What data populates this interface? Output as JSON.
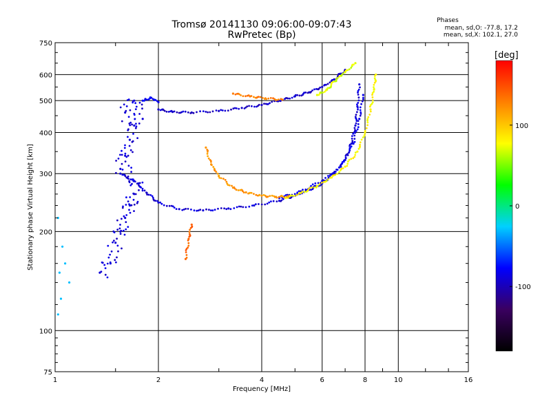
{
  "chart_data": {
    "type": "scatter",
    "title": "Tromsø 20141130 09:06:00-09:07:43",
    "subtitle": "RwPretec (Bp)",
    "xlabel": "Frequency [MHz]",
    "ylabel": "Stationary phase Virtual Height [km]",
    "x_scale": "log",
    "y_scale": "log",
    "xlim": [
      1,
      16
    ],
    "ylim": [
      75,
      750
    ],
    "x_ticks": [
      1,
      2,
      4,
      6,
      8,
      10,
      16
    ],
    "y_ticks": [
      75,
      100,
      200,
      300,
      400,
      500,
      600,
      750
    ],
    "grid": true,
    "phase_stats": {
      "heading": "Phases",
      "o_line": "mean, sd,O: -77.8, 17.2",
      "x_line": "mean, sd,X: 102.1, 27.0"
    },
    "colorbar": {
      "label": "[deg]",
      "range": [
        -180,
        180
      ],
      "ticks": [
        100,
        0,
        -100
      ],
      "colors": [
        "#000000",
        "#3a0060",
        "#0000ff",
        "#00d0ff",
        "#00ff00",
        "#ffff00",
        "#ff8000",
        "#ff0000"
      ]
    },
    "series": [
      {
        "kind": "trace",
        "phase": -95,
        "points": [
          [
            2.0,
            470
          ],
          [
            2.2,
            462
          ],
          [
            2.5,
            460
          ],
          [
            3.0,
            465
          ],
          [
            3.5,
            475
          ],
          [
            4.0,
            485
          ],
          [
            4.5,
            500
          ],
          [
            5.0,
            515
          ],
          [
            5.5,
            530
          ],
          [
            6.0,
            550
          ],
          [
            6.5,
            580
          ],
          [
            7.0,
            620
          ]
        ]
      },
      {
        "kind": "trace",
        "phase": -80,
        "points": [
          [
            1.8,
            500
          ],
          [
            1.9,
            510
          ],
          [
            2.0,
            495
          ]
        ]
      },
      {
        "kind": "trace",
        "phase": -90,
        "points": [
          [
            1.55,
            300
          ],
          [
            1.7,
            285
          ],
          [
            1.85,
            262
          ],
          [
            2.0,
            245
          ],
          [
            2.3,
            234
          ],
          [
            2.7,
            232
          ],
          [
            3.2,
            235
          ],
          [
            3.8,
            240
          ],
          [
            4.5,
            248
          ],
          [
            5.0,
            257
          ],
          [
            5.5,
            268
          ],
          [
            6.0,
            280
          ],
          [
            6.5,
            300
          ],
          [
            7.0,
            330
          ],
          [
            7.3,
            370
          ],
          [
            7.5,
            420
          ],
          [
            7.6,
            480
          ],
          [
            7.7,
            560
          ]
        ]
      },
      {
        "kind": "trace",
        "phase": -85,
        "points": [
          [
            4.5,
            253
          ],
          [
            5.2,
            265
          ],
          [
            6.0,
            285
          ],
          [
            6.8,
            315
          ],
          [
            7.4,
            370
          ],
          [
            7.7,
            440
          ],
          [
            7.9,
            520
          ]
        ]
      },
      {
        "kind": "trace",
        "phase": 120,
        "points": [
          [
            2.75,
            360
          ],
          [
            2.85,
            320
          ],
          [
            3.0,
            295
          ],
          [
            3.3,
            272
          ],
          [
            3.6,
            263
          ],
          [
            4.0,
            257
          ],
          [
            4.4,
            255
          ],
          [
            4.8,
            256
          ]
        ]
      },
      {
        "kind": "trace",
        "phase": 130,
        "points": [
          [
            3.3,
            525
          ],
          [
            3.7,
            515
          ],
          [
            4.1,
            508
          ],
          [
            4.6,
            503
          ]
        ]
      },
      {
        "kind": "trace",
        "phase": 80,
        "points": [
          [
            4.7,
            253
          ],
          [
            5.2,
            262
          ],
          [
            5.8,
            275
          ],
          [
            6.4,
            292
          ],
          [
            7.0,
            315
          ],
          [
            7.6,
            350
          ],
          [
            8.0,
            400
          ],
          [
            8.3,
            470
          ],
          [
            8.5,
            540
          ],
          [
            8.6,
            600
          ]
        ]
      },
      {
        "kind": "trace",
        "phase": 70,
        "points": [
          [
            5.8,
            520
          ],
          [
            6.2,
            540
          ],
          [
            6.6,
            580
          ],
          [
            7.0,
            610
          ],
          [
            7.5,
            650
          ]
        ]
      },
      {
        "kind": "trace",
        "phase": 140,
        "points": [
          [
            2.5,
            210
          ],
          [
            2.45,
            190
          ],
          [
            2.4,
            165
          ]
        ]
      },
      {
        "kind": "cluster",
        "phase": -90,
        "points": [
          [
            1.35,
            150
          ],
          [
            1.45,
            160
          ],
          [
            1.5,
            185
          ],
          [
            1.55,
            200
          ],
          [
            1.6,
            220
          ],
          [
            1.65,
            240
          ],
          [
            1.7,
            260
          ],
          [
            1.75,
            280
          ],
          [
            1.55,
            310
          ],
          [
            1.6,
            340
          ],
          [
            1.65,
            380
          ],
          [
            1.7,
            420
          ],
          [
            1.6,
            460
          ],
          [
            1.7,
            500
          ],
          [
            1.8,
            440
          ]
        ]
      },
      {
        "kind": "scatter",
        "phase": -30,
        "points": [
          [
            1.02,
            220
          ],
          [
            1.05,
            180
          ],
          [
            1.03,
            150
          ],
          [
            1.04,
            125
          ],
          [
            1.02,
            112
          ],
          [
            1.07,
            160
          ],
          [
            1.1,
            140
          ]
        ]
      }
    ]
  }
}
